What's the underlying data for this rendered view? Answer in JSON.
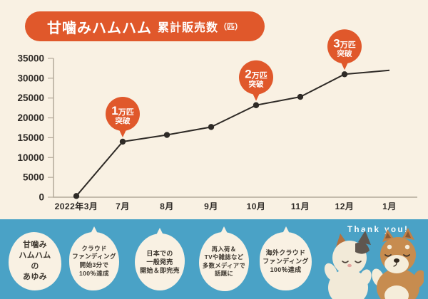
{
  "title": {
    "logo": "甘噛みハムハム",
    "text": "累計販売数",
    "unit": "（匹）"
  },
  "colors": {
    "background": "#f9f1e3",
    "accent_orange": "#e0582b",
    "band_blue": "#4aa2c6",
    "line_dark": "#2e2a26",
    "axis_gray": "#b3a99a"
  },
  "chart_data": {
    "type": "line",
    "title": "甘噛みハムハム 累計販売数（匹）",
    "categories": [
      "2022年3月",
      "7月",
      "8月",
      "9月",
      "10月",
      "11月",
      "12月",
      "1月"
    ],
    "values": [
      300,
      14000,
      15700,
      17700,
      23200,
      25300,
      31000,
      32000
    ],
    "markers": [
      true,
      true,
      true,
      true,
      true,
      true,
      true,
      false
    ],
    "ylim": [
      0,
      35000
    ],
    "ytick_step": 5000,
    "grid": false,
    "legend": false,
    "annotations": [
      {
        "index": 1,
        "big": "1",
        "unit": "万匹",
        "sub": "突破"
      },
      {
        "index": 4,
        "big": "2",
        "unit": "万匹",
        "sub": "突破"
      },
      {
        "index": 6,
        "big": "3",
        "unit": "万匹",
        "sub": "突破"
      }
    ]
  },
  "timeline": {
    "heading_bubble": [
      "甘噛み",
      "ハムハム",
      "の",
      "あゆみ"
    ],
    "bubbles": [
      {
        "lines": [
          "甘噛み",
          "ハムハム",
          "の",
          "あゆみ"
        ]
      },
      {
        "lines": [
          "クラウド",
          "ファンディング",
          "開始3分で",
          "100％達成"
        ]
      },
      {
        "lines": [
          "日本での",
          "一般発売",
          "開始＆即完売"
        ]
      },
      {
        "lines": [
          "再入荷＆",
          "TVや雑誌など",
          "多数メディアで",
          "話題に"
        ]
      },
      {
        "lines": [
          "海外クラウド",
          "ファンディング",
          "100％達成"
        ]
      }
    ],
    "thanks": "Thank you!",
    "plushies": [
      "calico-cat-plush",
      "shiba-inu-plush"
    ]
  }
}
